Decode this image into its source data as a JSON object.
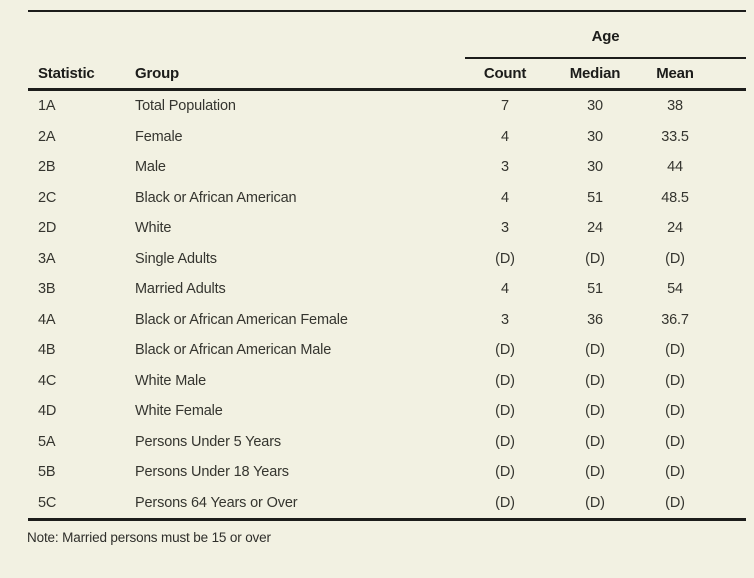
{
  "page": {
    "background_color": "#f2f1e2",
    "text_color": "#2e2e2a",
    "rule_color": "#1d1d1b"
  },
  "table": {
    "spanner": {
      "label": "Age"
    },
    "columns": {
      "statistic": "Statistic",
      "group": "Group",
      "count": "Count",
      "median": "Median",
      "mean": "Mean"
    },
    "rows": [
      {
        "statistic": "1A",
        "group": "Total Population",
        "count": "7",
        "median": "30",
        "mean": "38"
      },
      {
        "statistic": "2A",
        "group": "Female",
        "count": "4",
        "median": "30",
        "mean": "33.5"
      },
      {
        "statistic": "2B",
        "group": "Male",
        "count": "3",
        "median": "30",
        "mean": "44"
      },
      {
        "statistic": "2C",
        "group": "Black or African American",
        "count": "4",
        "median": "51",
        "mean": "48.5"
      },
      {
        "statistic": "2D",
        "group": "White",
        "count": "3",
        "median": "24",
        "mean": "24"
      },
      {
        "statistic": "3A",
        "group": "Single Adults",
        "count": "(D)",
        "median": "(D)",
        "mean": "(D)"
      },
      {
        "statistic": "3B",
        "group": "Married Adults",
        "count": "4",
        "median": "51",
        "mean": "54"
      },
      {
        "statistic": "4A",
        "group": "Black or African American Female",
        "count": "3",
        "median": "36",
        "mean": "36.7"
      },
      {
        "statistic": "4B",
        "group": "Black or African American Male",
        "count": "(D)",
        "median": "(D)",
        "mean": "(D)"
      },
      {
        "statistic": "4C",
        "group": "White Male",
        "count": "(D)",
        "median": "(D)",
        "mean": "(D)"
      },
      {
        "statistic": "4D",
        "group": "White Female",
        "count": "(D)",
        "median": "(D)",
        "mean": "(D)"
      },
      {
        "statistic": "5A",
        "group": "Persons Under 5 Years",
        "count": "(D)",
        "median": "(D)",
        "mean": "(D)"
      },
      {
        "statistic": "5B",
        "group": "Persons Under 18 Years",
        "count": "(D)",
        "median": "(D)",
        "mean": "(D)"
      },
      {
        "statistic": "5C",
        "group": "Persons 64 Years or Over",
        "count": "(D)",
        "median": "(D)",
        "mean": "(D)"
      }
    ],
    "note": "Note: Married persons must be 15 or over"
  }
}
